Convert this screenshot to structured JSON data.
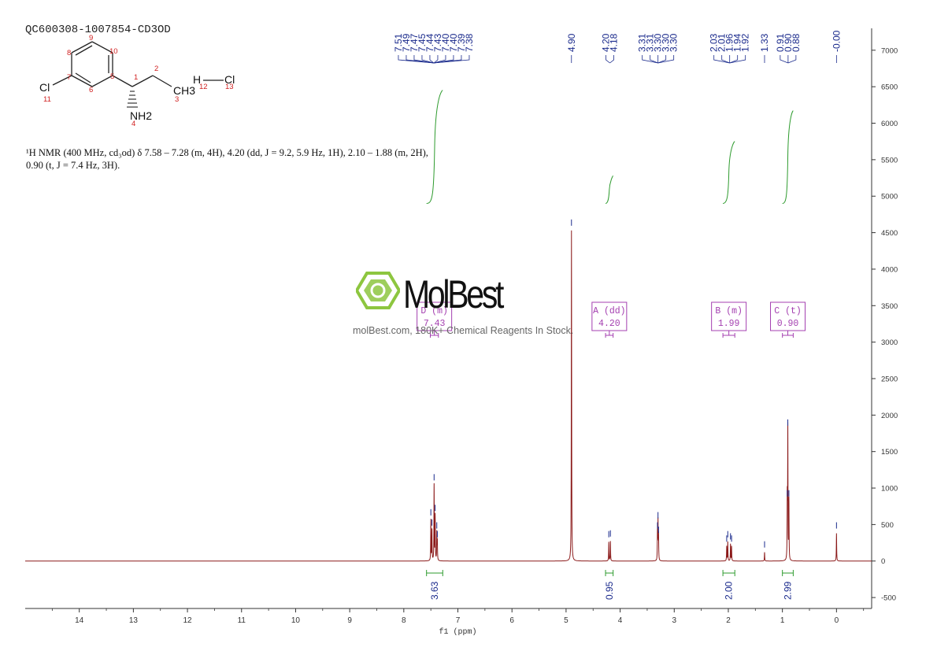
{
  "sample_id": "QC600308-1007854-CD3OD",
  "nmr_description_line1": "¹H NMR (400 MHz, cd₃od) δ 7.58 – 7.28 (m, 4H), 4.20 (dd, J = 9.2, 5.9 Hz, 1H), 2.10 – 1.88 (m, 2H),",
  "nmr_description_line2": "0.90 (t, J = 7.4 Hz, 3H).",
  "watermark": {
    "name": "MolBest",
    "tagline": "molBest.com, 180K+ Chemical Reagents In Stock."
  },
  "structure": {
    "atom_labels": [
      "Cl",
      "NH2",
      "CH3",
      "H",
      "Cl"
    ],
    "atom_numbers": [
      "1",
      "2",
      "3",
      "4",
      "5",
      "6",
      "7",
      "8",
      "9",
      "10",
      "11",
      "12",
      "13"
    ]
  },
  "colors": {
    "spectrum": "#8b1a1a",
    "peak_label": "#1a2a8c",
    "integral": "#2e9b2e",
    "multiplet": "#a43fb0",
    "axis": "#333333",
    "atom_number": "#d02020",
    "watermark_green": "#8dc63f"
  },
  "chart_data": {
    "type": "line",
    "xlabel": "f1 (ppm)",
    "xlim": [
      15.0,
      -0.65
    ],
    "ylim": [
      -650,
      7300
    ],
    "x_ticks": [
      14,
      13,
      12,
      11,
      10,
      9,
      8,
      7,
      6,
      5,
      4,
      3,
      2,
      1,
      0
    ],
    "y_ticks": [
      -500,
      0,
      500,
      1000,
      1500,
      2000,
      2500,
      3000,
      3500,
      4000,
      4500,
      5000,
      5500,
      6000,
      6500,
      7000
    ],
    "series": [
      {
        "peaks": [
          {
            "ppm": 7.5,
            "height": 560
          },
          {
            "ppm": 7.48,
            "height": 420
          },
          {
            "ppm": 7.44,
            "height": 1040
          },
          {
            "ppm": 7.42,
            "height": 620
          },
          {
            "ppm": 7.39,
            "height": 380
          },
          {
            "ppm": 7.38,
            "height": 260
          },
          {
            "ppm": 4.9,
            "height": 4530
          },
          {
            "ppm": 4.21,
            "height": 260
          },
          {
            "ppm": 4.18,
            "height": 270
          },
          {
            "ppm": 3.31,
            "height": 380
          },
          {
            "ppm": 3.3,
            "height": 520
          },
          {
            "ppm": 3.29,
            "height": 320
          },
          {
            "ppm": 2.03,
            "height": 200
          },
          {
            "ppm": 2.01,
            "height": 260
          },
          {
            "ppm": 1.96,
            "height": 230
          },
          {
            "ppm": 1.94,
            "height": 200
          },
          {
            "ppm": 1.33,
            "height": 120
          },
          {
            "ppm": 0.91,
            "height": 820
          },
          {
            "ppm": 0.9,
            "height": 1790
          },
          {
            "ppm": 0.88,
            "height": 820
          },
          {
            "ppm": 0.0,
            "height": 380
          }
        ]
      }
    ],
    "peak_label_groups": [
      {
        "ppm_center": 7.445,
        "labels": [
          "7.51",
          "7.49",
          "7.47",
          "7.45",
          "7.44",
          "7.43",
          "7.40",
          "7.40",
          "7.39",
          "7.38"
        ]
      },
      {
        "ppm_center": 4.9,
        "labels": [
          "4.90"
        ]
      },
      {
        "ppm_center": 4.19,
        "labels": [
          "4.20",
          "4.18"
        ]
      },
      {
        "ppm_center": 3.3,
        "labels": [
          "3.31",
          "3.31",
          "3.30",
          "3.30",
          "3.30"
        ]
      },
      {
        "ppm_center": 1.975,
        "labels": [
          "2.03",
          "2.01",
          "1.96",
          "1.94",
          "1.92"
        ]
      },
      {
        "ppm_center": 1.33,
        "labels": [
          "1.33"
        ]
      },
      {
        "ppm_center": 0.895,
        "labels": [
          "0.91",
          "0.90",
          "0.88"
        ]
      },
      {
        "ppm_center": 0.0,
        "labels": [
          "-0.00"
        ]
      }
    ],
    "integrals": [
      {
        "from": 7.58,
        "to": 7.28,
        "value": "3.63"
      },
      {
        "from": 4.27,
        "to": 4.13,
        "value": "0.95"
      },
      {
        "from": 2.1,
        "to": 1.88,
        "value": "2.00"
      },
      {
        "from": 1.0,
        "to": 0.8,
        "value": "2.99"
      }
    ],
    "integral_curves": [
      {
        "from": 7.58,
        "to": 7.28,
        "y_start": 4900,
        "y_end": 6450
      },
      {
        "from": 4.27,
        "to": 4.13,
        "y_start": 4900,
        "y_end": 5280
      },
      {
        "from": 2.1,
        "to": 1.88,
        "y_start": 4900,
        "y_end": 5750
      },
      {
        "from": 1.0,
        "to": 0.8,
        "y_start": 4900,
        "y_end": 6170
      }
    ],
    "multiplets": [
      {
        "id": "D",
        "type": "(m)",
        "shift": "7.43",
        "range": [
          7.51,
          7.36
        ]
      },
      {
        "id": "A",
        "type": "(dd)",
        "shift": "4.20",
        "range": [
          4.27,
          4.13
        ]
      },
      {
        "id": "B",
        "type": "(m)",
        "shift": "1.99",
        "range": [
          2.1,
          1.88
        ]
      },
      {
        "id": "C",
        "type": "(t)",
        "shift": "0.90",
        "range": [
          1.0,
          0.8
        ]
      }
    ]
  }
}
